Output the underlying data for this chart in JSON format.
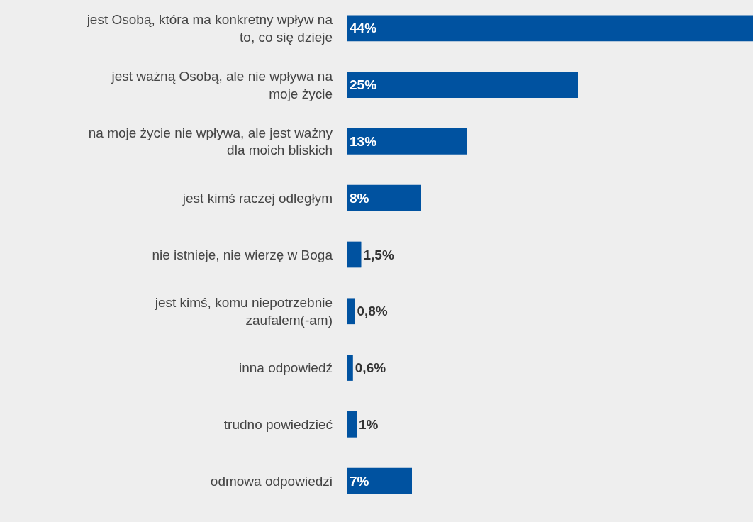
{
  "chart_data": {
    "type": "bar",
    "orientation": "horizontal",
    "categories": [
      "jest Osobą, która ma konkretny wpływ na\nto, co się dzieje",
      "jest ważną Osobą, ale nie wpływa na\nmoje życie",
      "na moje życie nie wpływa, ale jest ważny\ndla moich bliskich",
      "jest kimś raczej odległym",
      "nie istnieje, nie wierzę w Boga",
      "jest kimś, komu niepotrzebnie\nzaufałem(-am)",
      "inna odpowiedź",
      "trudno powiedzieć",
      "odmowa odpowiedzi"
    ],
    "values": [
      44,
      25,
      13,
      8,
      1.5,
      0.8,
      0.6,
      1,
      7
    ],
    "value_labels": [
      "44%",
      "25%",
      "13%",
      "8%",
      "1,5%",
      "0,8%",
      "0,6%",
      "1%",
      "7%"
    ],
    "color": "#0052a0",
    "xlim": [
      0,
      44
    ],
    "grid": false,
    "legend": false
  }
}
